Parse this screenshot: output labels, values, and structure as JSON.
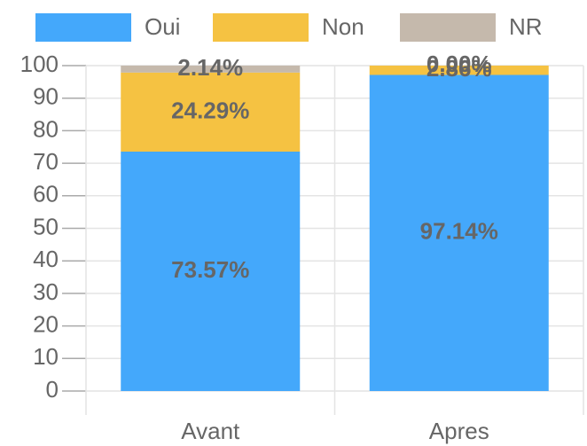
{
  "chart_data": {
    "type": "stacked_bar",
    "categories": [
      "Avant",
      "Apres"
    ],
    "series": [
      {
        "name": "Oui",
        "color": "#44a8fb",
        "values": [
          73.57,
          97.14
        ],
        "value_labels": [
          "73.57%",
          "97.14%"
        ]
      },
      {
        "name": "Non",
        "color": "#f5c242",
        "values": [
          24.29,
          2.86
        ],
        "value_labels": [
          "24.29%",
          "2.86%"
        ]
      },
      {
        "name": "NR",
        "color": "#c5b9ac",
        "values": [
          2.14,
          0.0
        ],
        "value_labels": [
          "2.14%",
          "0.00%"
        ]
      }
    ],
    "ylim": [
      0,
      100
    ],
    "yticks": [
      0,
      10,
      20,
      30,
      40,
      50,
      60,
      70,
      80,
      90,
      100
    ],
    "grid": true,
    "legend": "top"
  }
}
